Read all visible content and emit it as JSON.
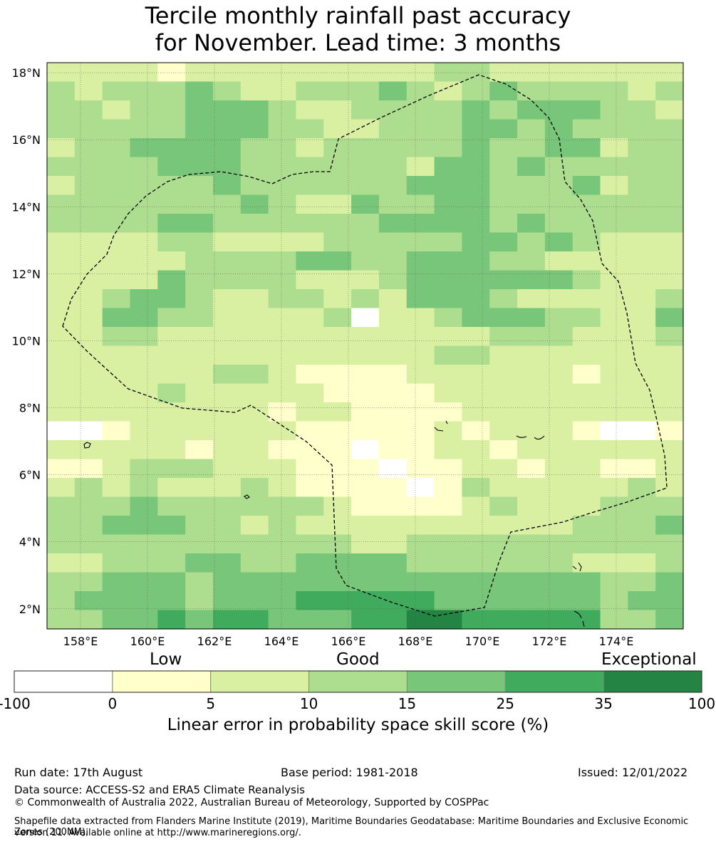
{
  "title": {
    "line1": "Tercile monthly rainfall past accuracy",
    "line2": "for November. Lead time: 3 months"
  },
  "map": {
    "lat_labels": [
      "18°N",
      "16°N",
      "14°N",
      "12°N",
      "10°N",
      "8°N",
      "6°N",
      "4°N",
      "2°N"
    ],
    "lon_labels": [
      "158°E",
      "160°E",
      "162°E",
      "164°E",
      "166°E",
      "168°E",
      "170°E",
      "172°E",
      "174°E"
    ],
    "lat_range": [
      1.4,
      18.3
    ],
    "lon_range": [
      157.0,
      176.0
    ],
    "region": "Marshall Islands EEZ"
  },
  "legend": {
    "categories": [
      "Low",
      "Good",
      "Exceptional"
    ],
    "boundaries": [
      "-100",
      "0",
      "5",
      "10",
      "15",
      "25",
      "35",
      "100"
    ],
    "colors": [
      "#ffffff",
      "#ffffcc",
      "#d9f0a3",
      "#addd8e",
      "#78c679",
      "#41ab5d",
      "#238443"
    ],
    "title": "Linear error in probability space skill score (%)"
  },
  "footer": {
    "run_date": "Run date: 17th August",
    "base_period": "Base period: 1981-2018",
    "issued": "Issued: 12/01/2022",
    "data_source": "Data source: ACCESS-S2 and ERA5 Climate Reanalysis",
    "copyright": "© Commonwealth of Australia 2022, Australian Bureau of Meteorology, Supported by COSPPac",
    "shapefile_line1": "Shapefile data extracted from Flanders Marine Institute (2019), Maritime Boundaries Geodatabase: Maritime Boundaries and Exclusive Economic Zones (200NM),",
    "shapefile_line2": "version 11. Available online at http://www.marineregions.org/."
  }
}
